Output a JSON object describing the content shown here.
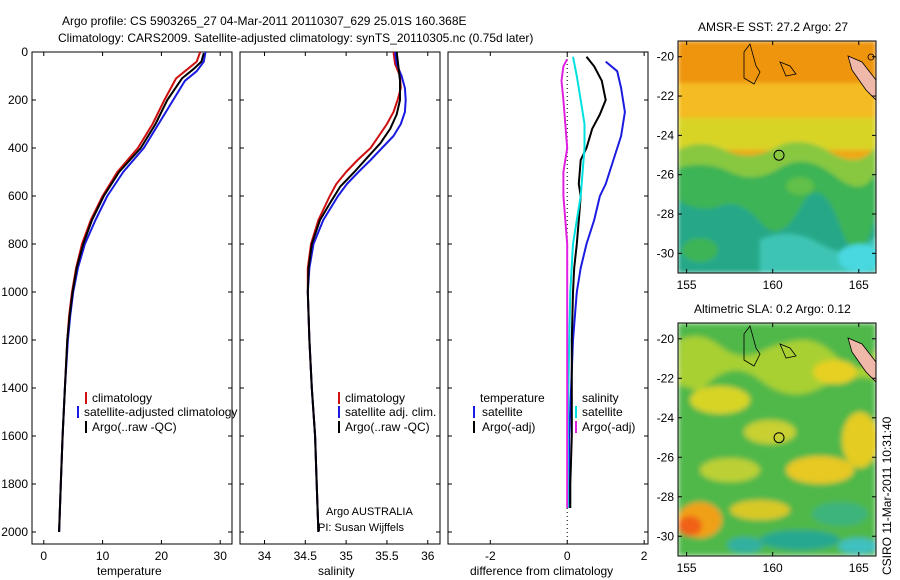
{
  "header": {
    "line1": "Argo profile: CS 5903265_27 04-Mar-2011 20110307_629 25.01S 160.368E",
    "line2": "Climatology: CARS2009. Satellite-adjusted climatology: synTS_20110305.nc (0.75d later)"
  },
  "stamp": "CSIRO 11-Mar-2011 10:31:40",
  "colors": {
    "climatology": "#d01010",
    "satellite": "#1a1ae0",
    "argo": "#000000",
    "salinity_satellite": "#00e0e0",
    "salinity_argo": "#e020e0",
    "land": "#f0b8a8"
  },
  "chart_data": [
    {
      "type": "line",
      "panel": "temperature",
      "xlabel": "temperature",
      "ylabel": "",
      "xlim": [
        -2,
        32
      ],
      "ylim": [
        2050,
        0
      ],
      "xticks": [
        0,
        10,
        20,
        30
      ],
      "yticks": [
        0,
        200,
        400,
        600,
        800,
        1000,
        1200,
        1400,
        1600,
        1800,
        2000
      ],
      "legend": [
        "climatology",
        "satellite-adjusted climatology",
        "Argo(..raw -QC)"
      ],
      "series": [
        {
          "name": "climatology",
          "color_key": "climatology",
          "points": [
            [
              26.6,
              0
            ],
            [
              26.0,
              40
            ],
            [
              24.5,
              70
            ],
            [
              22.5,
              110
            ],
            [
              20.5,
              200
            ],
            [
              18.5,
              300
            ],
            [
              16,
              400
            ],
            [
              12.5,
              500
            ],
            [
              10,
              600
            ],
            [
              8,
              700
            ],
            [
              6.5,
              800
            ],
            [
              5.5,
              900
            ],
            [
              4.8,
              1000
            ],
            [
              4.3,
              1100
            ],
            [
              4,
              1200
            ],
            [
              3.6,
              1400
            ],
            [
              3.2,
              1600
            ],
            [
              2.9,
              1800
            ],
            [
              2.6,
              2000
            ]
          ]
        },
        {
          "name": "satellite-adjusted climatology",
          "color_key": "satellite",
          "points": [
            [
              27.5,
              0
            ],
            [
              27.2,
              40
            ],
            [
              26,
              80
            ],
            [
              24,
              120
            ],
            [
              22,
              200
            ],
            [
              19.5,
              300
            ],
            [
              17,
              400
            ],
            [
              13.5,
              500
            ],
            [
              10.8,
              600
            ],
            [
              8.8,
              700
            ],
            [
              7,
              800
            ],
            [
              5.8,
              900
            ],
            [
              5,
              1000
            ],
            [
              4.5,
              1100
            ],
            [
              4.1,
              1200
            ],
            [
              3.6,
              1400
            ],
            [
              3.2,
              1600
            ],
            [
              2.9,
              1800
            ],
            [
              2.6,
              2000
            ]
          ]
        },
        {
          "name": "Argo(..raw -QC)",
          "color_key": "argo",
          "points": [
            [
              27.2,
              5
            ],
            [
              26.8,
              40
            ],
            [
              25.5,
              70
            ],
            [
              23.5,
              110
            ],
            [
              21,
              200
            ],
            [
              19,
              300
            ],
            [
              16.5,
              400
            ],
            [
              12.8,
              500
            ],
            [
              10.2,
              600
            ],
            [
              8.2,
              700
            ],
            [
              6.7,
              800
            ],
            [
              5.6,
              900
            ],
            [
              4.9,
              1000
            ],
            [
              4.4,
              1100
            ],
            [
              4,
              1200
            ],
            [
              3.6,
              1400
            ],
            [
              3.2,
              1600
            ],
            [
              2.9,
              1800
            ],
            [
              2.6,
              2000
            ]
          ]
        }
      ]
    },
    {
      "type": "line",
      "panel": "salinity",
      "xlabel": "salinity",
      "ylabel": "",
      "xlim": [
        33.7,
        36.15
      ],
      "ylim": [
        2050,
        0
      ],
      "xticks": [
        34,
        34.5,
        35,
        35.5,
        36
      ],
      "legend": [
        "climatology",
        "satellite adj. clim.",
        "Argo(..raw -QC)"
      ],
      "annotations": [
        "Argo AUSTRALIA",
        "PI: Susan Wijffels"
      ],
      "series": [
        {
          "name": "climatology",
          "color_key": "climatology",
          "points": [
            [
              35.58,
              0
            ],
            [
              35.6,
              50
            ],
            [
              35.66,
              100
            ],
            [
              35.67,
              150
            ],
            [
              35.63,
              200
            ],
            [
              35.58,
              250
            ],
            [
              35.5,
              300
            ],
            [
              35.4,
              350
            ],
            [
              35.3,
              400
            ],
            [
              35.14,
              450
            ],
            [
              35.0,
              500
            ],
            [
              34.88,
              550
            ],
            [
              34.8,
              600
            ],
            [
              34.66,
              700
            ],
            [
              34.57,
              800
            ],
            [
              34.53,
              900
            ],
            [
              34.53,
              1000
            ],
            [
              34.55,
              1200
            ],
            [
              34.58,
              1400
            ],
            [
              34.62,
              1600
            ],
            [
              34.64,
              1800
            ],
            [
              34.66,
              2000
            ]
          ]
        },
        {
          "name": "satellite adj. clim.",
          "color_key": "satellite",
          "points": [
            [
              35.6,
              0
            ],
            [
              35.62,
              50
            ],
            [
              35.68,
              100
            ],
            [
              35.72,
              150
            ],
            [
              35.73,
              200
            ],
            [
              35.72,
              250
            ],
            [
              35.67,
              300
            ],
            [
              35.58,
              350
            ],
            [
              35.44,
              400
            ],
            [
              35.3,
              450
            ],
            [
              35.15,
              500
            ],
            [
              35.01,
              550
            ],
            [
              34.9,
              600
            ],
            [
              34.72,
              700
            ],
            [
              34.6,
              800
            ],
            [
              34.55,
              900
            ],
            [
              34.53,
              1000
            ],
            [
              34.55,
              1200
            ],
            [
              34.58,
              1400
            ],
            [
              34.62,
              1600
            ],
            [
              34.64,
              1800
            ],
            [
              34.66,
              2000
            ]
          ]
        },
        {
          "name": "Argo(..raw -QC)",
          "color_key": "argo",
          "points": [
            [
              35.62,
              0
            ],
            [
              35.64,
              60
            ],
            [
              35.66,
              120
            ],
            [
              35.66,
              200
            ],
            [
              35.62,
              260
            ],
            [
              35.54,
              320
            ],
            [
              35.42,
              380
            ],
            [
              35.26,
              440
            ],
            [
              35.1,
              500
            ],
            [
              34.93,
              560
            ],
            [
              34.82,
              620
            ],
            [
              34.68,
              700
            ],
            [
              34.58,
              800
            ],
            [
              34.54,
              900
            ],
            [
              34.53,
              1000
            ],
            [
              34.55,
              1200
            ],
            [
              34.58,
              1400
            ],
            [
              34.62,
              1600
            ],
            [
              34.64,
              1800
            ],
            [
              34.66,
              2000
            ]
          ]
        }
      ]
    },
    {
      "type": "line",
      "panel": "difference",
      "xlabel": "difference from climatology",
      "ylabel": "",
      "xlim": [
        -3.1,
        2.1
      ],
      "ylim": [
        2050,
        0
      ],
      "xticks": [
        -2,
        0,
        2
      ],
      "legend": {
        "temperature": [
          "temperature",
          "satellite",
          "Argo(-adj)"
        ],
        "salinity": [
          "salinity",
          "satellite",
          "Argo(-adj)"
        ]
      },
      "series": [
        {
          "name": "satellite",
          "group": "temperature",
          "color_key": "satellite",
          "points": [
            [
              1.0,
              40
            ],
            [
              1.3,
              80
            ],
            [
              1.4,
              150
            ],
            [
              1.5,
              250
            ],
            [
              1.4,
              350
            ],
            [
              1.2,
              450
            ],
            [
              1.0,
              550
            ],
            [
              0.85,
              600
            ],
            [
              0.7,
              700
            ],
            [
              0.5,
              800
            ],
            [
              0.35,
              900
            ],
            [
              0.25,
              1000
            ],
            [
              0.15,
              1200
            ],
            [
              0.1,
              1400
            ],
            [
              0.05,
              1600
            ],
            [
              0.05,
              1800
            ],
            [
              0.05,
              1900
            ]
          ]
        },
        {
          "name": "Argo(-adj)",
          "group": "temperature",
          "color_key": "argo",
          "points": [
            [
              0.5,
              20
            ],
            [
              0.7,
              60
            ],
            [
              0.9,
              120
            ],
            [
              1.0,
              200
            ],
            [
              0.85,
              260
            ],
            [
              0.65,
              320
            ],
            [
              0.5,
              400
            ],
            [
              0.35,
              450
            ],
            [
              0.3,
              550
            ],
            [
              0.35,
              600
            ],
            [
              0.3,
              700
            ],
            [
              0.25,
              800
            ],
            [
              0.18,
              900
            ],
            [
              0.15,
              1000
            ],
            [
              0.12,
              1200
            ],
            [
              0.12,
              1400
            ],
            [
              0.12,
              1600
            ],
            [
              0.08,
              1800
            ],
            [
              0.08,
              1900
            ]
          ]
        },
        {
          "name": "satellite",
          "group": "salinity",
          "color_key": "salinity_satellite",
          "points": [
            [
              0.15,
              20
            ],
            [
              0.25,
              100
            ],
            [
              0.35,
              200
            ],
            [
              0.45,
              300
            ],
            [
              0.45,
              400
            ],
            [
              0.4,
              500
            ],
            [
              0.35,
              600
            ],
            [
              0.25,
              700
            ],
            [
              0.15,
              800
            ],
            [
              0.08,
              1000
            ],
            [
              0.05,
              1200
            ],
            [
              0.03,
              1400
            ],
            [
              0.02,
              1600
            ],
            [
              0.02,
              1800
            ],
            [
              0.02,
              1900
            ]
          ]
        },
        {
          "name": "Argo(-adj)",
          "group": "salinity",
          "color_key": "salinity_argo",
          "points": [
            [
              0.0,
              30
            ],
            [
              -0.1,
              60
            ],
            [
              -0.15,
              120
            ],
            [
              -0.1,
              200
            ],
            [
              -0.05,
              300
            ],
            [
              0.0,
              400
            ],
            [
              -0.1,
              500
            ],
            [
              -0.1,
              600
            ],
            [
              -0.05,
              700
            ],
            [
              0.0,
              800
            ],
            [
              0.0,
              1000
            ],
            [
              0.0,
              1200
            ],
            [
              0.0,
              1400
            ],
            [
              0.0,
              1600
            ],
            [
              0.0,
              1800
            ],
            [
              0.0,
              1900
            ]
          ]
        }
      ]
    },
    {
      "type": "heatmap",
      "panel": "map",
      "title": "AMSR-E SST: 27.2 Argo: 27",
      "xticks": [
        155,
        160,
        165
      ],
      "yticks": [
        -20,
        -22,
        -24,
        -26,
        -28,
        -30
      ],
      "xlim": [
        154.5,
        166
      ],
      "ylim": [
        -31,
        -19.2
      ],
      "argo_position": [
        160.368,
        -25.01
      ]
    },
    {
      "type": "heatmap",
      "panel": "map",
      "title": "Altimetric SLA: 0.2 Argo: 0.12",
      "xticks": [
        155,
        160,
        165
      ],
      "yticks": [
        -20,
        -22,
        -24,
        -26,
        -28,
        -30
      ],
      "xlim": [
        154.5,
        166
      ],
      "ylim": [
        -31,
        -19.2
      ],
      "argo_position": [
        160.368,
        -25.01
      ]
    }
  ]
}
